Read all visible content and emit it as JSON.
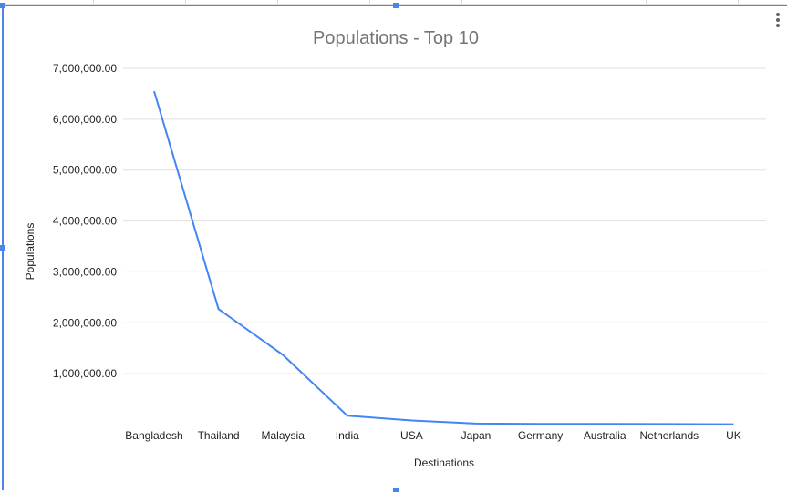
{
  "chart_data": {
    "type": "line",
    "title": "Populations - Top 10",
    "xlabel": "Destinations",
    "ylabel": "Populations",
    "categories": [
      "Bangladesh",
      "Thailand",
      "Malaysia",
      "India",
      "USA",
      "Japan",
      "Germany",
      "Australia",
      "Netherlands",
      "UK"
    ],
    "series": [
      {
        "values": [
          6550000,
          2270000,
          1370000,
          175000,
          80000,
          20000,
          15000,
          12000,
          10000,
          8000
        ],
        "color": "#4285f4"
      }
    ],
    "yticks": [
      1000000,
      2000000,
      3000000,
      4000000,
      5000000,
      6000000,
      7000000
    ],
    "ytick_labels": [
      "1,000,000.00",
      "2,000,000.00",
      "3,000,000.00",
      "4,000,000.00",
      "5,000,000.00",
      "6,000,000.00",
      "7,000,000.00"
    ],
    "ylim": [
      0,
      7000000
    ],
    "grid": true,
    "legend": "none"
  },
  "ui": {
    "chart_menu_icon": "kebab-menu-icon",
    "selection_color": "#4a86e8",
    "gridline_color": "#e0e0e0"
  }
}
